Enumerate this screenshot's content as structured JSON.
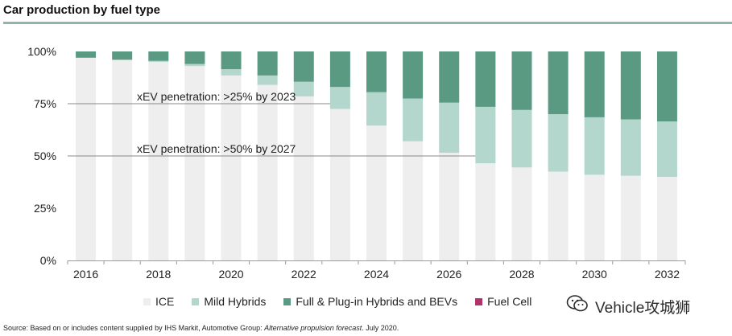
{
  "title": "Car production by fuel type",
  "source": {
    "prefix": "Source: Based on or includes content supplied by IHS Markit, Automotive Group: ",
    "italic": "Alternative propulsion forecast",
    "suffix": ". July 2020."
  },
  "watermark": {
    "text": "Vehicle攻城狮",
    "icon": "wechat-icon"
  },
  "colors": {
    "ICE": "#eeeeee",
    "Mild Hybrids": "#b3d7cc",
    "Full & Plug-in Hybrids and BEVs": "#5a9a83",
    "Fuel Cell": "#b0336b",
    "title_rule": "#8fb7a6"
  },
  "chart_data": {
    "type": "bar",
    "stacked": true,
    "title": "Car production by fuel type",
    "categories": [
      "2016",
      "2017",
      "2018",
      "2019",
      "2020",
      "2021",
      "2022",
      "2023",
      "2024",
      "2025",
      "2026",
      "2027",
      "2028",
      "2029",
      "2030",
      "2031",
      "2032"
    ],
    "x_tick_labels": [
      "2016",
      "2018",
      "2020",
      "2022",
      "2024",
      "2026",
      "2028",
      "2030",
      "2032"
    ],
    "y_ticks": [
      "0%",
      "25%",
      "50%",
      "75%",
      "100%"
    ],
    "ylim": [
      0,
      100
    ],
    "series": [
      {
        "name": "ICE",
        "values": [
          97,
          96,
          95,
          93,
          88.5,
          84,
          78.5,
          72.5,
          64.5,
          57,
          51.5,
          46.5,
          44.5,
          42.5,
          41,
          40.5,
          40
        ]
      },
      {
        "name": "Mild Hybrids",
        "values": [
          0,
          0,
          0.5,
          1,
          3,
          4.5,
          7,
          10.5,
          16,
          20.5,
          24,
          27,
          27.5,
          27.5,
          27.5,
          27,
          26.5
        ]
      },
      {
        "name": "Full & Plug-in Hybrids and BEVs",
        "values": [
          3,
          4,
          4.5,
          6,
          8.5,
          11.5,
          14.5,
          17,
          19.5,
          22.5,
          24.5,
          26.5,
          28,
          30,
          31.5,
          32.5,
          33.5
        ]
      },
      {
        "name": "Fuel Cell",
        "values": [
          0,
          0,
          0,
          0,
          0,
          0,
          0,
          0,
          0,
          0,
          0,
          0,
          0,
          0,
          0,
          0,
          0
        ]
      }
    ],
    "annotations": [
      {
        "text": "xEV penetration: >25% by 2023",
        "y": 75,
        "x_end": "2023"
      },
      {
        "text": "xEV penetration: >50% by 2027",
        "y": 50,
        "x_end": "2027"
      }
    ],
    "legend_position": "bottom"
  }
}
